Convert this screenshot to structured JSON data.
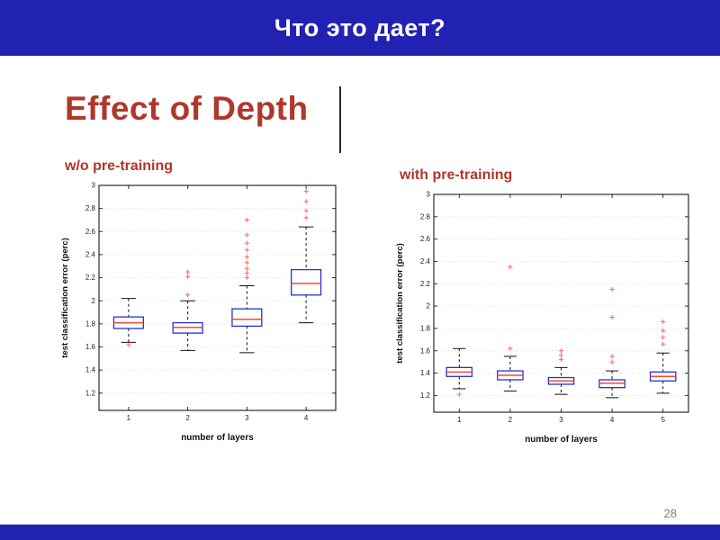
{
  "header": {
    "title": "Что это дает?"
  },
  "slide": {
    "title": "Effect of Depth",
    "page_number": "28"
  },
  "chart_data": [
    {
      "type": "boxplot",
      "title": "w/o pre-training",
      "xlabel": "number of layers",
      "ylabel": "test classification error (perc)",
      "categories": [
        "1",
        "2",
        "3",
        "4"
      ],
      "ylim": [
        1.05,
        3.0
      ],
      "yticks": [
        1.2,
        1.4,
        1.6,
        1.8,
        2,
        2.2,
        2.4,
        2.6,
        2.8,
        3
      ],
      "grid": "dotted-horizontal",
      "legend": "none",
      "boxes": [
        {
          "whislo": 1.64,
          "q1": 1.76,
          "med": 1.81,
          "q3": 1.86,
          "whishi": 2.02,
          "fliers": [
            1.62
          ]
        },
        {
          "whislo": 1.57,
          "q1": 1.72,
          "med": 1.77,
          "q3": 1.81,
          "whishi": 2.0,
          "fliers": [
            2.05,
            2.21,
            2.25
          ]
        },
        {
          "whislo": 1.55,
          "q1": 1.78,
          "med": 1.84,
          "q3": 1.93,
          "whishi": 2.13,
          "fliers": [
            2.2,
            2.24,
            2.28,
            2.33,
            2.38,
            2.44,
            2.5,
            2.57,
            2.7
          ]
        },
        {
          "whislo": 1.81,
          "q1": 2.05,
          "med": 2.15,
          "q3": 2.27,
          "whishi": 2.64,
          "fliers": [
            2.72,
            2.78,
            2.86,
            2.95
          ]
        }
      ]
    },
    {
      "type": "boxplot",
      "title": "with pre-training",
      "xlabel": "number of layers",
      "ylabel": "test classification error (perc)",
      "categories": [
        "1",
        "2",
        "3",
        "4",
        "5"
      ],
      "ylim": [
        1.05,
        3.0
      ],
      "yticks": [
        1.2,
        1.4,
        1.6,
        1.8,
        2,
        2.2,
        2.4,
        2.6,
        2.8,
        3
      ],
      "grid": "dotted-horizontal",
      "legend": "none",
      "boxes": [
        {
          "whislo": 1.26,
          "q1": 1.37,
          "med": 1.41,
          "q3": 1.45,
          "whishi": 1.62,
          "fliers": [
            1.21
          ]
        },
        {
          "whislo": 1.24,
          "q1": 1.34,
          "med": 1.38,
          "q3": 1.42,
          "whishi": 1.55,
          "fliers": [
            1.62,
            2.35
          ]
        },
        {
          "whislo": 1.21,
          "q1": 1.3,
          "med": 1.33,
          "q3": 1.36,
          "whishi": 1.45,
          "fliers": [
            1.52,
            1.56,
            1.6
          ]
        },
        {
          "whislo": 1.18,
          "q1": 1.27,
          "med": 1.31,
          "q3": 1.34,
          "whishi": 1.42,
          "fliers": [
            1.5,
            1.55,
            1.9,
            2.15
          ]
        },
        {
          "whislo": 1.22,
          "q1": 1.33,
          "med": 1.37,
          "q3": 1.41,
          "whishi": 1.58,
          "fliers": [
            1.66,
            1.72,
            1.78,
            1.86
          ]
        }
      ]
    }
  ],
  "colors": {
    "header_bg": "#2222b2",
    "accent_red": "#b0372b",
    "box_blue": "#2233cc",
    "median_red": "#ff4433",
    "flier_red": "#ff6666"
  }
}
